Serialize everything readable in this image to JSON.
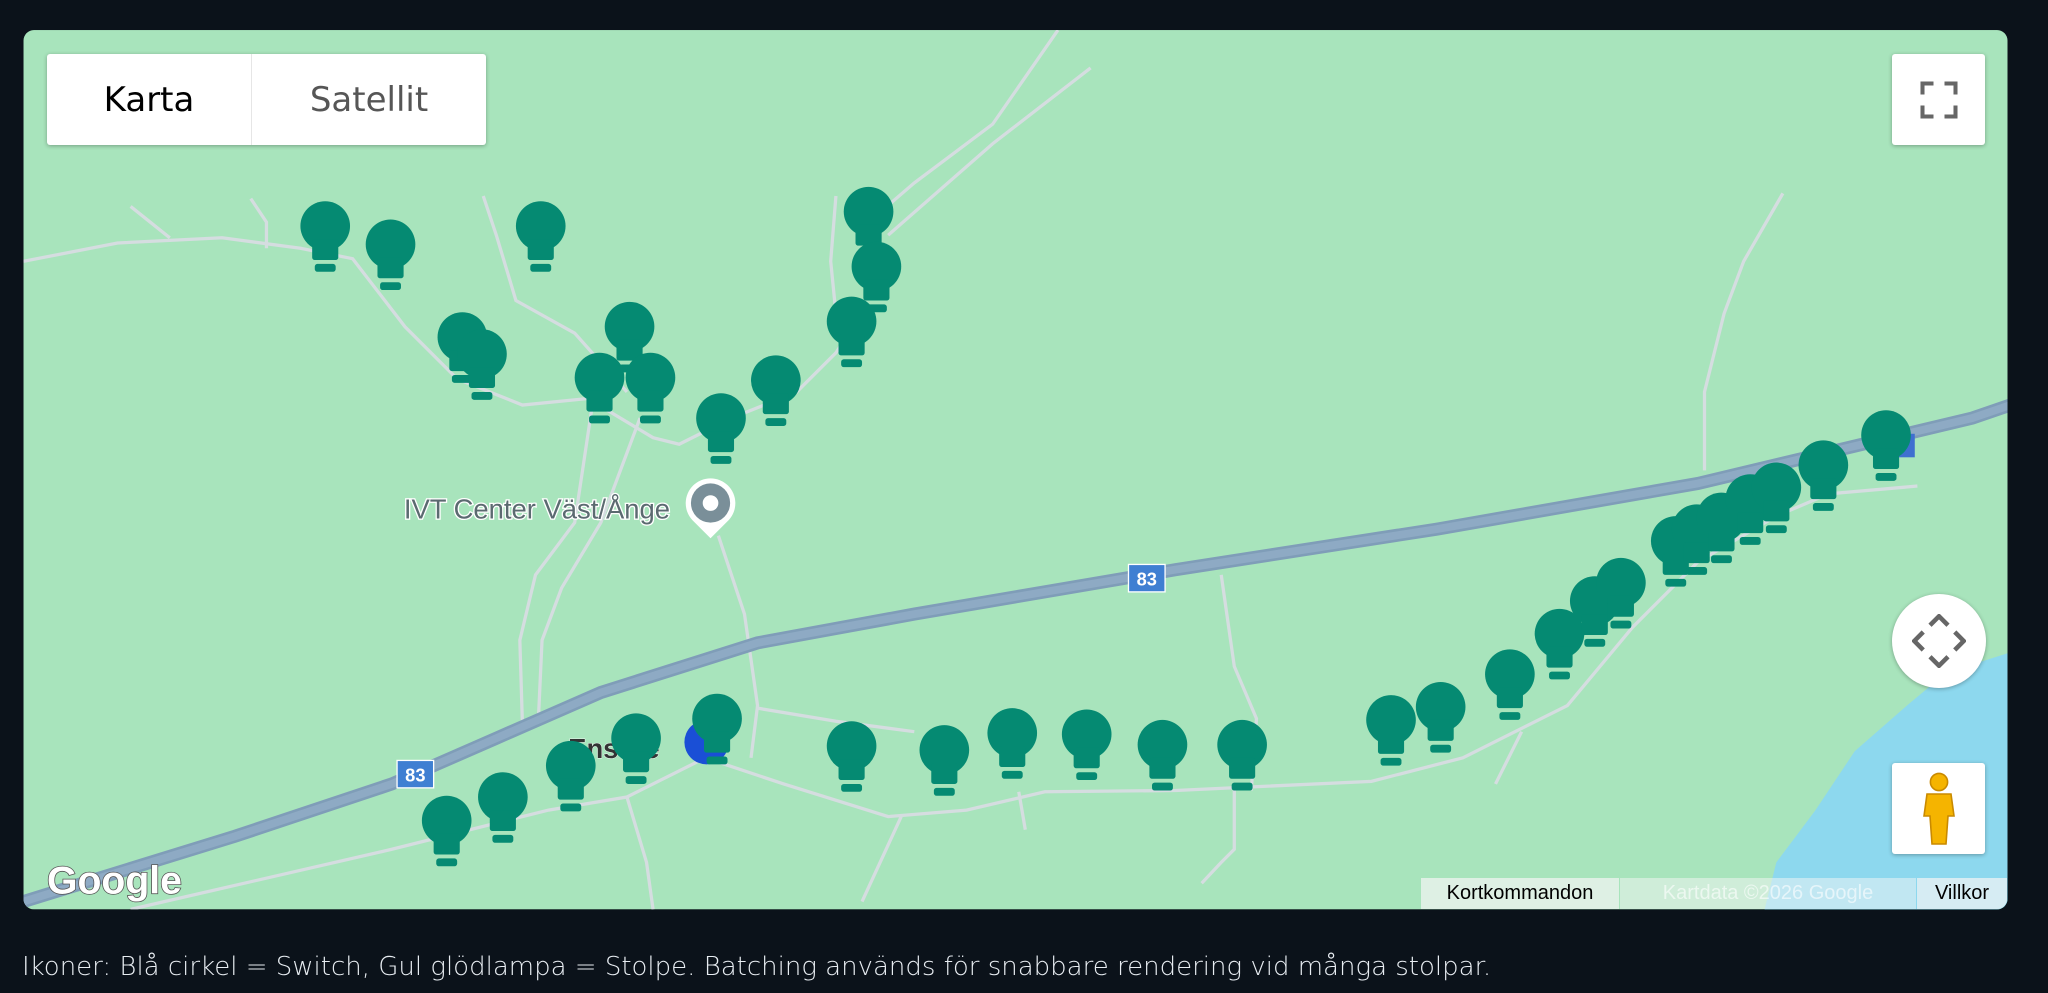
{
  "map": {
    "type_control": {
      "map_label": "Karta",
      "satellite_label": "Satellit",
      "selected": "Karta"
    },
    "place_label": "IVT Center Väst/Ånge",
    "town_label": "Ensare",
    "road_shield": "83",
    "logo": "Google",
    "attribution": {
      "shortcuts": "Kortkommandon",
      "copyright": "Kartdata ©2026 Google",
      "terms": "Villkor"
    },
    "icons": {
      "fullscreen": "fullscreen-icon",
      "pan": "pan-arrows-icon",
      "pegman": "pegman-icon",
      "marker": "lightbulb-icon",
      "switch": "blue-circle-icon"
    },
    "colors": {
      "land": "#a8e4bc",
      "marker": "#058a72",
      "switch": "#1a4fd6",
      "highway": "#8aa8c0",
      "water": "#8dd8ee"
    }
  },
  "caption": "Ikoner: Blå cirkel = Switch, Gul glödlampa = Stolpe. Batching används för snabbare rendering vid många stolpar."
}
